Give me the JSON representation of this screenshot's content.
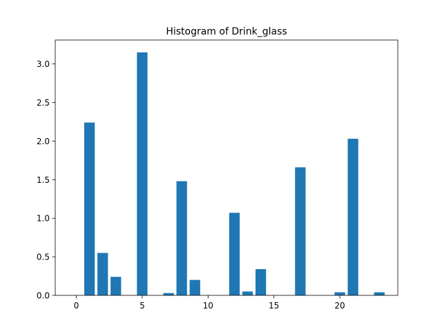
{
  "chart_data": {
    "type": "bar",
    "title": "Histogram of Drink_glass",
    "xlabel": "",
    "ylabel": "",
    "x": [
      0,
      1,
      2,
      3,
      4,
      5,
      6,
      7,
      8,
      9,
      10,
      11,
      12,
      13,
      14,
      15,
      16,
      17,
      18,
      19,
      20,
      21,
      22,
      23
    ],
    "values": [
      0,
      2.24,
      0.55,
      0.24,
      0,
      3.15,
      0,
      0.03,
      1.48,
      0.2,
      0,
      0,
      1.07,
      0.05,
      0.34,
      0,
      0,
      1.66,
      0,
      0,
      0.04,
      2.03,
      0,
      0.04
    ],
    "xlim": [
      -1.6,
      24.4
    ],
    "ylim": [
      0,
      3.31
    ],
    "xticks": [
      0,
      5,
      10,
      15,
      20
    ],
    "xtick_labels": [
      "0",
      "5",
      "10",
      "15",
      "20"
    ],
    "yticks": [
      0,
      0.5,
      1,
      1.5,
      2,
      2.5,
      3
    ],
    "ytick_labels": [
      "0.0",
      "0.5",
      "1.0",
      "1.5",
      "2.0",
      "2.5",
      "3.0"
    ],
    "bar_width": 0.8,
    "bar_color": "#1f77b4",
    "grid": false,
    "legend": "none"
  }
}
